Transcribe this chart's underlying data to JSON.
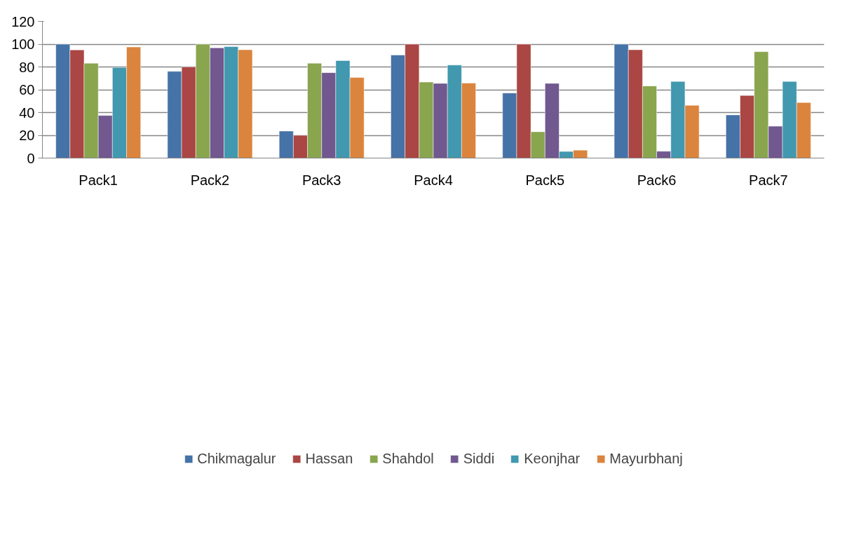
{
  "chart_data": {
    "type": "bar",
    "categories": [
      "Pack1",
      "Pack2",
      "Pack3",
      "Pack4",
      "Pack5",
      "Pack6",
      "Pack7"
    ],
    "series": [
      {
        "name": "Chikmagalur",
        "color": "#4572a7",
        "values": [
          100,
          76.1,
          23.7,
          90.5,
          57.1,
          100,
          37.9
        ]
      },
      {
        "name": "Hassan",
        "color": "#aa4643",
        "values": [
          95,
          80,
          20,
          100,
          100,
          95.1,
          55
        ]
      },
      {
        "name": "Shahdol",
        "color": "#89a54e",
        "values": [
          83.3,
          100,
          83.3,
          66.7,
          23.1,
          63.3,
          93.4
        ]
      },
      {
        "name": "Siddi",
        "color": "#71588f",
        "values": [
          37.4,
          96.8,
          75,
          65.6,
          65.6,
          6,
          28
        ]
      },
      {
        "name": "Keonjhar",
        "color": "#4198af",
        "values": [
          79.5,
          97.9,
          85.6,
          81.7,
          5.8,
          67.3,
          67.3
        ]
      },
      {
        "name": "Mayurbhanj",
        "color": "#db843d",
        "values": [
          97.5,
          95.1,
          70.7,
          65.8,
          7,
          46.3,
          48.7
        ]
      }
    ],
    "ylim": [
      0,
      120
    ],
    "yticks": [
      0,
      20,
      40,
      60,
      80,
      100,
      120
    ],
    "grid": "y",
    "legend": "bottom"
  }
}
